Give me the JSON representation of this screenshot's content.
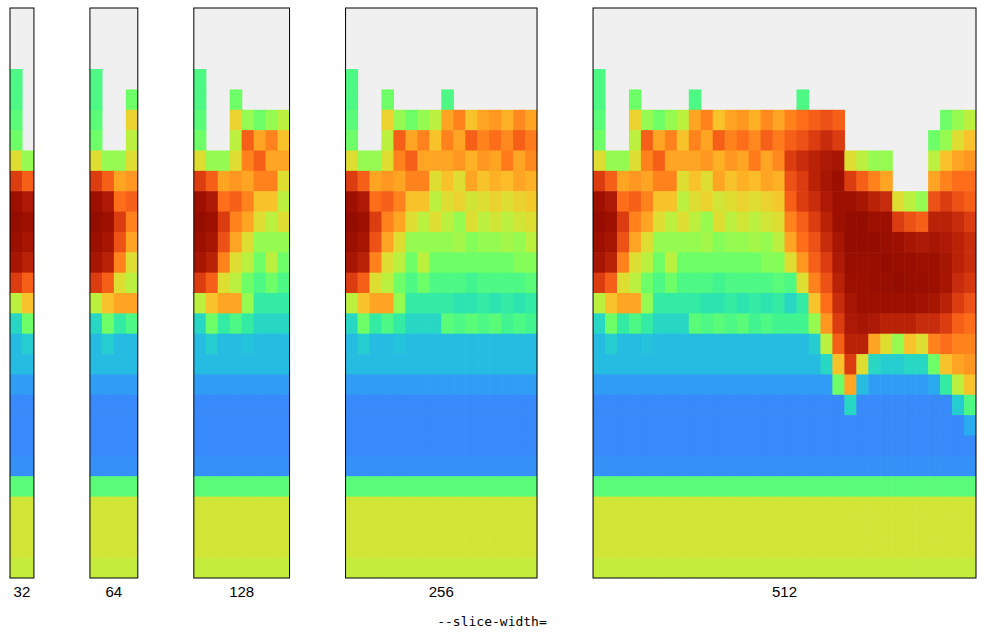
{
  "chart_data": {
    "type": "heatmap",
    "xlabel": "--slice-width=",
    "slice_widths": [
      32,
      64,
      128,
      256,
      512
    ],
    "x": [
      0,
      16,
      32,
      48,
      64,
      80,
      96,
      112,
      128,
      144,
      160,
      176,
      192,
      208,
      224,
      240,
      256,
      272,
      288,
      304,
      320,
      336,
      352,
      368,
      384,
      400,
      416,
      432,
      448,
      464,
      480,
      496
    ],
    "color_range": [
      0,
      1
    ],
    "cells": [
      [
        null,
        null,
        null,
        null,
        null,
        null,
        null,
        null,
        null,
        null,
        null,
        null,
        null,
        null,
        null,
        null,
        null,
        null,
        null,
        null,
        null,
        null,
        null,
        null,
        null,
        null,
        null,
        null,
        null,
        null,
        null,
        null
      ],
      [
        null,
        null,
        null,
        null,
        null,
        null,
        null,
        null,
        null,
        null,
        null,
        null,
        null,
        null,
        null,
        null,
        null,
        null,
        null,
        null,
        null,
        null,
        null,
        null,
        null,
        null,
        null,
        null,
        null,
        null,
        null,
        null
      ],
      [
        null,
        null,
        null,
        null,
        null,
        null,
        null,
        null,
        null,
        null,
        null,
        null,
        null,
        null,
        null,
        null,
        null,
        null,
        null,
        null,
        null,
        null,
        null,
        null,
        null,
        null,
        null,
        null,
        null,
        null,
        null,
        null
      ],
      [
        0.4,
        null,
        null,
        null,
        null,
        null,
        null,
        null,
        null,
        null,
        null,
        null,
        null,
        null,
        null,
        null,
        null,
        null,
        null,
        null,
        null,
        null,
        null,
        null,
        null,
        null,
        null,
        null,
        null,
        null,
        null,
        null
      ],
      [
        0.4,
        null,
        null,
        0.45,
        null,
        null,
        null,
        null,
        0.4,
        null,
        null,
        null,
        null,
        null,
        null,
        null,
        null,
        0.4,
        null,
        null,
        null,
        null,
        null,
        null,
        null,
        null,
        null,
        null,
        null,
        null,
        null,
        null
      ],
      [
        0.42,
        null,
        null,
        0.62,
        0.5,
        0.45,
        0.5,
        0.55,
        0.7,
        0.75,
        0.65,
        0.7,
        0.72,
        0.68,
        0.74,
        0.7,
        0.75,
        0.78,
        0.8,
        0.82,
        0.8,
        null,
        null,
        null,
        null,
        null,
        null,
        null,
        null,
        0.45,
        0.5,
        0.55
      ],
      [
        0.45,
        null,
        null,
        0.55,
        0.8,
        0.7,
        0.75,
        0.65,
        0.75,
        0.7,
        0.8,
        0.75,
        0.78,
        0.74,
        0.8,
        0.76,
        0.8,
        0.82,
        0.85,
        0.88,
        0.85,
        null,
        null,
        null,
        null,
        null,
        null,
        null,
        0.45,
        0.5,
        0.6,
        0.65
      ],
      [
        0.6,
        0.5,
        0.5,
        0.6,
        0.75,
        0.8,
        0.7,
        0.7,
        0.7,
        0.72,
        0.68,
        0.72,
        0.7,
        0.76,
        0.7,
        0.74,
        0.85,
        0.88,
        0.9,
        0.92,
        0.93,
        0.6,
        0.55,
        0.5,
        0.5,
        null,
        null,
        null,
        0.55,
        0.65,
        0.7,
        0.72
      ],
      [
        0.85,
        0.8,
        0.7,
        0.72,
        0.7,
        0.75,
        0.75,
        0.6,
        0.65,
        0.6,
        0.7,
        0.65,
        0.68,
        0.66,
        0.7,
        0.68,
        0.82,
        0.85,
        0.9,
        0.93,
        0.95,
        0.85,
        0.8,
        0.75,
        0.7,
        null,
        null,
        null,
        0.7,
        0.75,
        0.78,
        0.78
      ],
      [
        0.95,
        0.92,
        0.78,
        0.8,
        0.75,
        0.65,
        0.65,
        0.55,
        0.6,
        0.62,
        0.58,
        0.6,
        0.62,
        0.6,
        0.62,
        0.64,
        0.8,
        0.85,
        0.88,
        0.92,
        0.95,
        0.95,
        0.93,
        0.9,
        0.88,
        0.6,
        0.55,
        0.5,
        0.82,
        0.85,
        0.82,
        0.8
      ],
      [
        0.97,
        0.95,
        0.85,
        0.75,
        0.7,
        0.6,
        0.55,
        0.6,
        0.55,
        0.5,
        0.6,
        0.55,
        0.58,
        0.55,
        0.58,
        0.6,
        0.75,
        0.8,
        0.85,
        0.9,
        0.95,
        0.97,
        0.97,
        0.95,
        0.95,
        0.85,
        0.82,
        0.8,
        0.9,
        0.9,
        0.88,
        0.85
      ],
      [
        0.95,
        0.93,
        0.82,
        0.7,
        0.6,
        0.5,
        0.5,
        0.5,
        0.5,
        0.52,
        0.48,
        0.5,
        0.5,
        0.52,
        0.5,
        0.55,
        0.7,
        0.78,
        0.82,
        0.88,
        0.93,
        0.97,
        0.97,
        0.97,
        0.96,
        0.95,
        0.93,
        0.92,
        0.93,
        0.92,
        0.9,
        0.88
      ],
      [
        0.93,
        0.9,
        0.75,
        0.6,
        0.55,
        0.45,
        0.55,
        0.45,
        0.45,
        0.45,
        0.45,
        0.45,
        0.45,
        0.45,
        0.48,
        0.48,
        0.6,
        0.72,
        0.8,
        0.85,
        0.92,
        0.96,
        0.96,
        0.96,
        0.97,
        0.96,
        0.96,
        0.95,
        0.95,
        0.93,
        0.9,
        0.88
      ],
      [
        0.85,
        0.8,
        0.6,
        0.55,
        0.45,
        0.4,
        0.45,
        0.4,
        0.4,
        0.4,
        0.38,
        0.4,
        0.4,
        0.4,
        0.4,
        0.42,
        0.4,
        0.6,
        0.75,
        0.82,
        0.9,
        0.95,
        0.95,
        0.96,
        0.96,
        0.97,
        0.96,
        0.96,
        0.95,
        0.93,
        0.88,
        0.86
      ],
      [
        0.55,
        0.65,
        0.7,
        0.7,
        0.5,
        0.35,
        0.35,
        0.35,
        0.35,
        0.33,
        0.33,
        0.35,
        0.33,
        0.35,
        0.33,
        0.35,
        0.3,
        0.35,
        0.65,
        0.78,
        0.88,
        0.93,
        0.95,
        0.95,
        0.95,
        0.95,
        0.95,
        0.94,
        0.93,
        0.9,
        0.85,
        0.82
      ],
      [
        0.3,
        0.45,
        0.35,
        0.4,
        0.35,
        0.3,
        0.3,
        0.3,
        0.42,
        0.4,
        0.42,
        0.4,
        0.42,
        0.38,
        0.4,
        0.38,
        0.38,
        0.38,
        0.5,
        0.72,
        0.85,
        0.92,
        0.93,
        0.92,
        0.9,
        0.9,
        0.9,
        0.88,
        0.88,
        0.85,
        0.8,
        0.78
      ],
      [
        0.25,
        0.28,
        0.25,
        0.25,
        0.26,
        0.25,
        0.25,
        0.25,
        0.25,
        0.25,
        0.25,
        0.25,
        0.25,
        0.25,
        0.25,
        0.25,
        0.25,
        0.25,
        0.28,
        0.55,
        0.8,
        0.9,
        0.9,
        0.7,
        0.6,
        0.5,
        0.65,
        0.6,
        0.75,
        0.78,
        0.75,
        0.75
      ],
      [
        0.25,
        0.25,
        0.25,
        0.25,
        0.25,
        0.25,
        0.25,
        0.25,
        0.25,
        0.25,
        0.25,
        0.25,
        0.25,
        0.25,
        0.25,
        0.25,
        0.25,
        0.25,
        0.25,
        0.3,
        0.65,
        0.85,
        0.6,
        0.3,
        0.28,
        0.28,
        0.3,
        0.3,
        0.45,
        0.65,
        0.7,
        0.72
      ],
      [
        0.2,
        0.2,
        0.2,
        0.2,
        0.2,
        0.2,
        0.2,
        0.2,
        0.2,
        0.2,
        0.2,
        0.2,
        0.2,
        0.2,
        0.2,
        0.2,
        0.2,
        0.2,
        0.2,
        0.2,
        0.45,
        0.7,
        0.25,
        0.2,
        0.2,
        0.2,
        0.2,
        0.2,
        0.22,
        0.35,
        0.55,
        0.65
      ],
      [
        0.17,
        0.17,
        0.17,
        0.17,
        0.17,
        0.17,
        0.17,
        0.17,
        0.17,
        0.17,
        0.17,
        0.17,
        0.17,
        0.17,
        0.17,
        0.17,
        0.17,
        0.17,
        0.17,
        0.17,
        0.17,
        0.3,
        0.17,
        0.17,
        0.17,
        0.17,
        0.17,
        0.17,
        0.17,
        0.17,
        0.28,
        0.4
      ],
      [
        0.17,
        0.17,
        0.17,
        0.17,
        0.17,
        0.17,
        0.17,
        0.17,
        0.17,
        0.17,
        0.17,
        0.17,
        0.17,
        0.17,
        0.17,
        0.17,
        0.17,
        0.17,
        0.17,
        0.17,
        0.17,
        0.17,
        0.17,
        0.17,
        0.17,
        0.17,
        0.17,
        0.17,
        0.17,
        0.17,
        0.17,
        0.22
      ],
      [
        0.17,
        0.17,
        0.17,
        0.17,
        0.17,
        0.17,
        0.17,
        0.17,
        0.17,
        0.17,
        0.17,
        0.17,
        0.17,
        0.17,
        0.17,
        0.17,
        0.17,
        0.17,
        0.17,
        0.17,
        0.17,
        0.17,
        0.17,
        0.17,
        0.17,
        0.17,
        0.17,
        0.17,
        0.17,
        0.17,
        0.17,
        0.17
      ],
      [
        0.18,
        0.18,
        0.18,
        0.18,
        0.18,
        0.18,
        0.18,
        0.18,
        0.18,
        0.18,
        0.18,
        0.18,
        0.18,
        0.18,
        0.18,
        0.18,
        0.18,
        0.18,
        0.18,
        0.18,
        0.18,
        0.18,
        0.18,
        0.18,
        0.18,
        0.18,
        0.18,
        0.18,
        0.18,
        0.18,
        0.18,
        0.18
      ],
      [
        0.42,
        0.42,
        0.42,
        0.42,
        0.42,
        0.42,
        0.42,
        0.42,
        0.42,
        0.42,
        0.42,
        0.42,
        0.42,
        0.42,
        0.42,
        0.42,
        0.42,
        0.42,
        0.42,
        0.42,
        0.42,
        0.42,
        0.42,
        0.42,
        0.42,
        0.42,
        0.42,
        0.42,
        0.42,
        0.42,
        0.42,
        0.42
      ],
      [
        0.58,
        0.58,
        0.58,
        0.58,
        0.58,
        0.58,
        0.58,
        0.58,
        0.58,
        0.58,
        0.58,
        0.58,
        0.58,
        0.58,
        0.58,
        0.58,
        0.58,
        0.58,
        0.58,
        0.58,
        0.58,
        0.58,
        0.58,
        0.58,
        0.58,
        0.58,
        0.58,
        0.58,
        0.58,
        0.58,
        0.58,
        0.58
      ],
      [
        0.58,
        0.58,
        0.58,
        0.58,
        0.58,
        0.58,
        0.58,
        0.58,
        0.58,
        0.58,
        0.58,
        0.58,
        0.58,
        0.58,
        0.58,
        0.58,
        0.58,
        0.58,
        0.58,
        0.58,
        0.58,
        0.58,
        0.58,
        0.58,
        0.58,
        0.58,
        0.58,
        0.58,
        0.58,
        0.58,
        0.58,
        0.58
      ],
      [
        0.58,
        0.58,
        0.58,
        0.58,
        0.58,
        0.58,
        0.58,
        0.58,
        0.58,
        0.58,
        0.58,
        0.58,
        0.58,
        0.58,
        0.58,
        0.58,
        0.58,
        0.58,
        0.58,
        0.58,
        0.58,
        0.58,
        0.58,
        0.58,
        0.58,
        0.58,
        0.58,
        0.58,
        0.58,
        0.58,
        0.58,
        0.58
      ],
      [
        0.56,
        0.56,
        0.56,
        0.56,
        0.56,
        0.56,
        0.56,
        0.56,
        0.56,
        0.56,
        0.56,
        0.56,
        0.56,
        0.56,
        0.56,
        0.56,
        0.56,
        0.56,
        0.56,
        0.56,
        0.56,
        0.56,
        0.56,
        0.56,
        0.56,
        0.56,
        0.56,
        0.56,
        0.56,
        0.56,
        0.56,
        0.56
      ]
    ]
  }
}
